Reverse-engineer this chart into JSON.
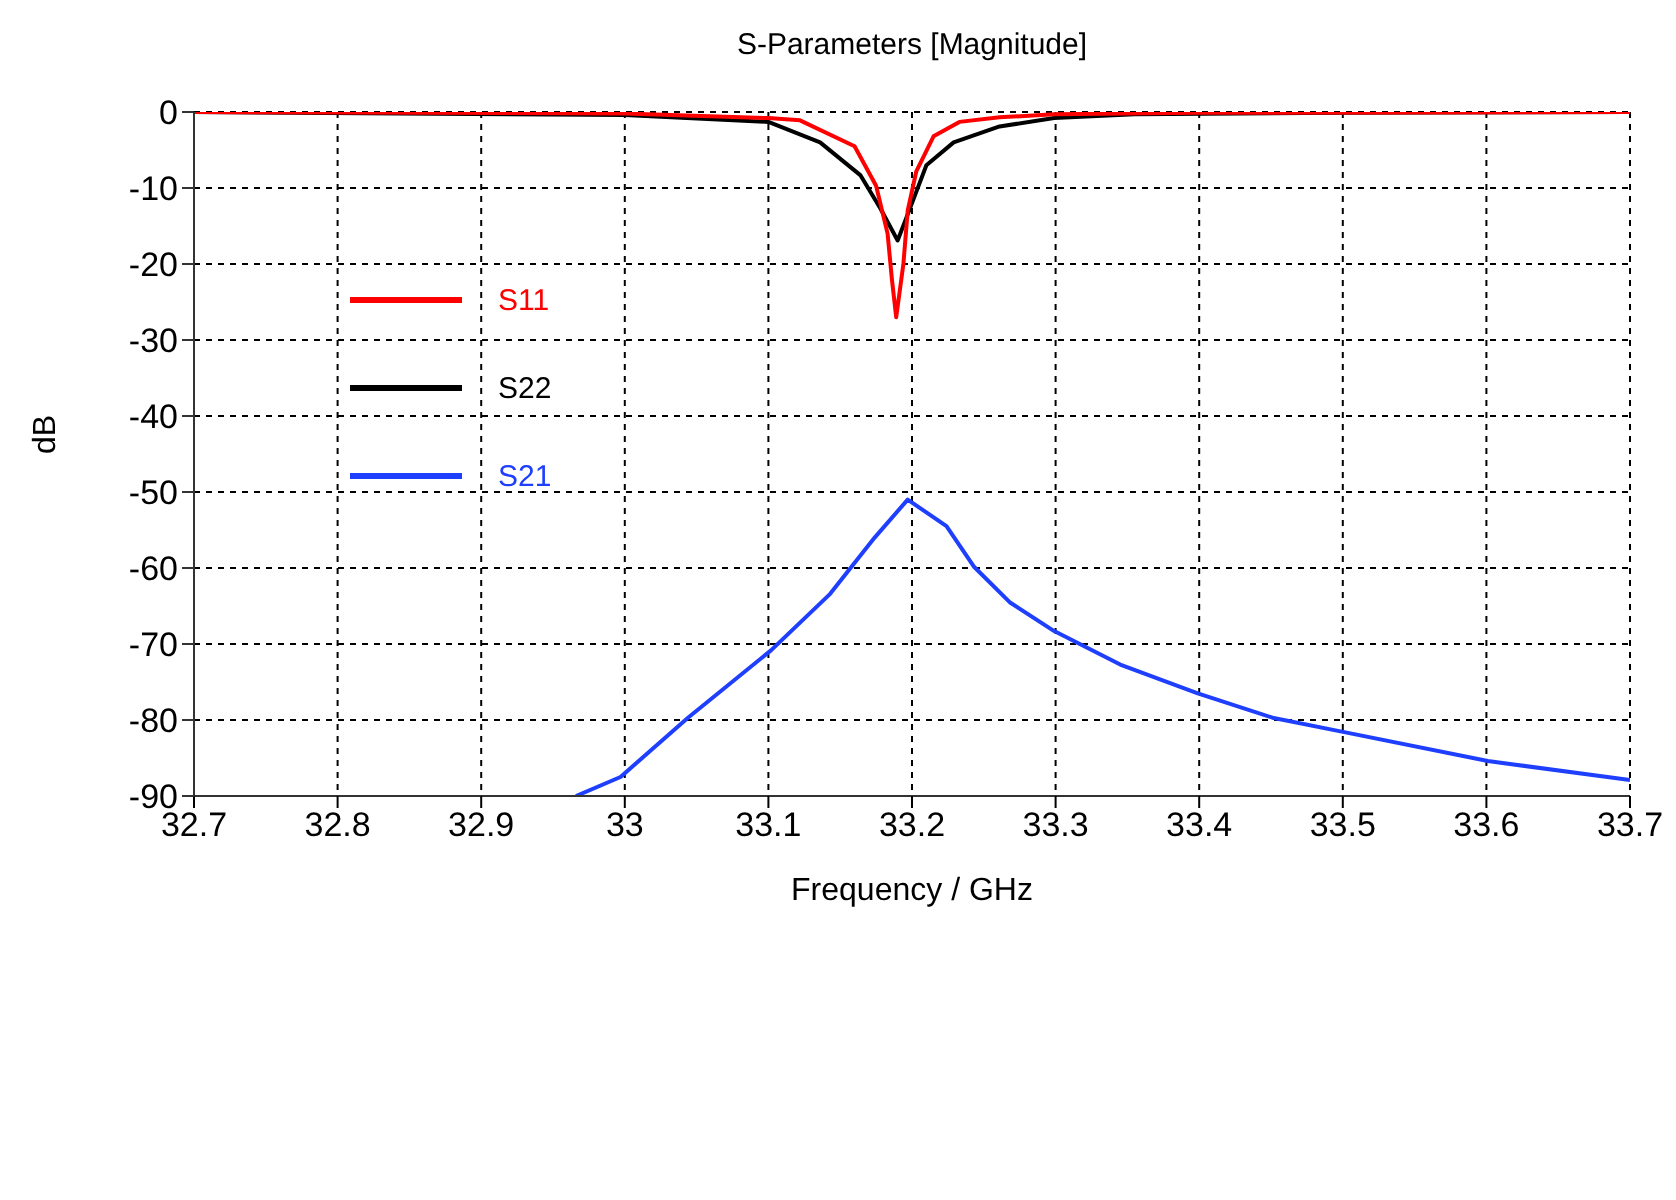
{
  "chart_data": {
    "type": "line",
    "title": "S-Parameters [Magnitude]",
    "xlabel": "Frequency / GHz",
    "ylabel": "dB",
    "xlim": [
      32.7,
      33.7
    ],
    "xticks": [
      32.7,
      32.8,
      32.9,
      {
        "value": 33,
        "label": "33"
      },
      33.1,
      33.2,
      33.3,
      33.4,
      33.5,
      33.6,
      33.7
    ],
    "ylim": [
      -90,
      0
    ],
    "yticks": [
      -90,
      -80,
      -70,
      -60,
      -50,
      -40,
      -30,
      -20,
      -10,
      0
    ],
    "grid": true,
    "legend": "top left",
    "marker": "none",
    "line_style": "solid",
    "series": [
      {
        "name": "S11",
        "color": "#ff0000",
        "x": [
          32.7,
          33.0,
          33.1,
          33.122,
          33.16,
          33.175,
          33.183,
          33.186,
          33.189,
          33.194,
          33.197,
          33.203,
          33.215,
          33.233,
          33.261,
          33.299,
          33.4,
          33.7
        ],
        "values": [
          0,
          -0.2,
          -0.8,
          -1.1,
          -4.5,
          -9.7,
          -16,
          -22,
          -27,
          -20,
          -13,
          -7.8,
          -3.2,
          -1.3,
          -0.7,
          -0.3,
          -0.1,
          0
        ]
      },
      {
        "name": "S22",
        "color": "#000000",
        "x": [
          32.7,
          33.0,
          33.1,
          33.136,
          33.164,
          33.178,
          33.19,
          33.201,
          33.21,
          33.229,
          33.261,
          33.299,
          33.355,
          33.5,
          33.7
        ],
        "values": [
          0,
          -0.4,
          -1.3,
          -4,
          -8.3,
          -12.7,
          -16.9,
          -11.5,
          -7,
          -4,
          -1.9,
          -0.8,
          -0.3,
          -0.1,
          0
        ]
      },
      {
        "name": "S21",
        "color": "#1f3fff",
        "x": [
          32.966,
          32.997,
          33.044,
          33.102,
          33.143,
          33.174,
          33.197,
          33.224,
          33.243,
          33.268,
          33.299,
          33.345,
          33.399,
          33.451,
          33.501,
          33.601,
          33.7
        ],
        "values": [
          -90,
          -87.5,
          -79.7,
          -70.8,
          -63.4,
          -56,
          -51,
          -54.5,
          -59.8,
          -64.5,
          -68.3,
          -72.7,
          -76.5,
          -79.7,
          -81.6,
          -85.4,
          -87.9
        ]
      }
    ]
  }
}
